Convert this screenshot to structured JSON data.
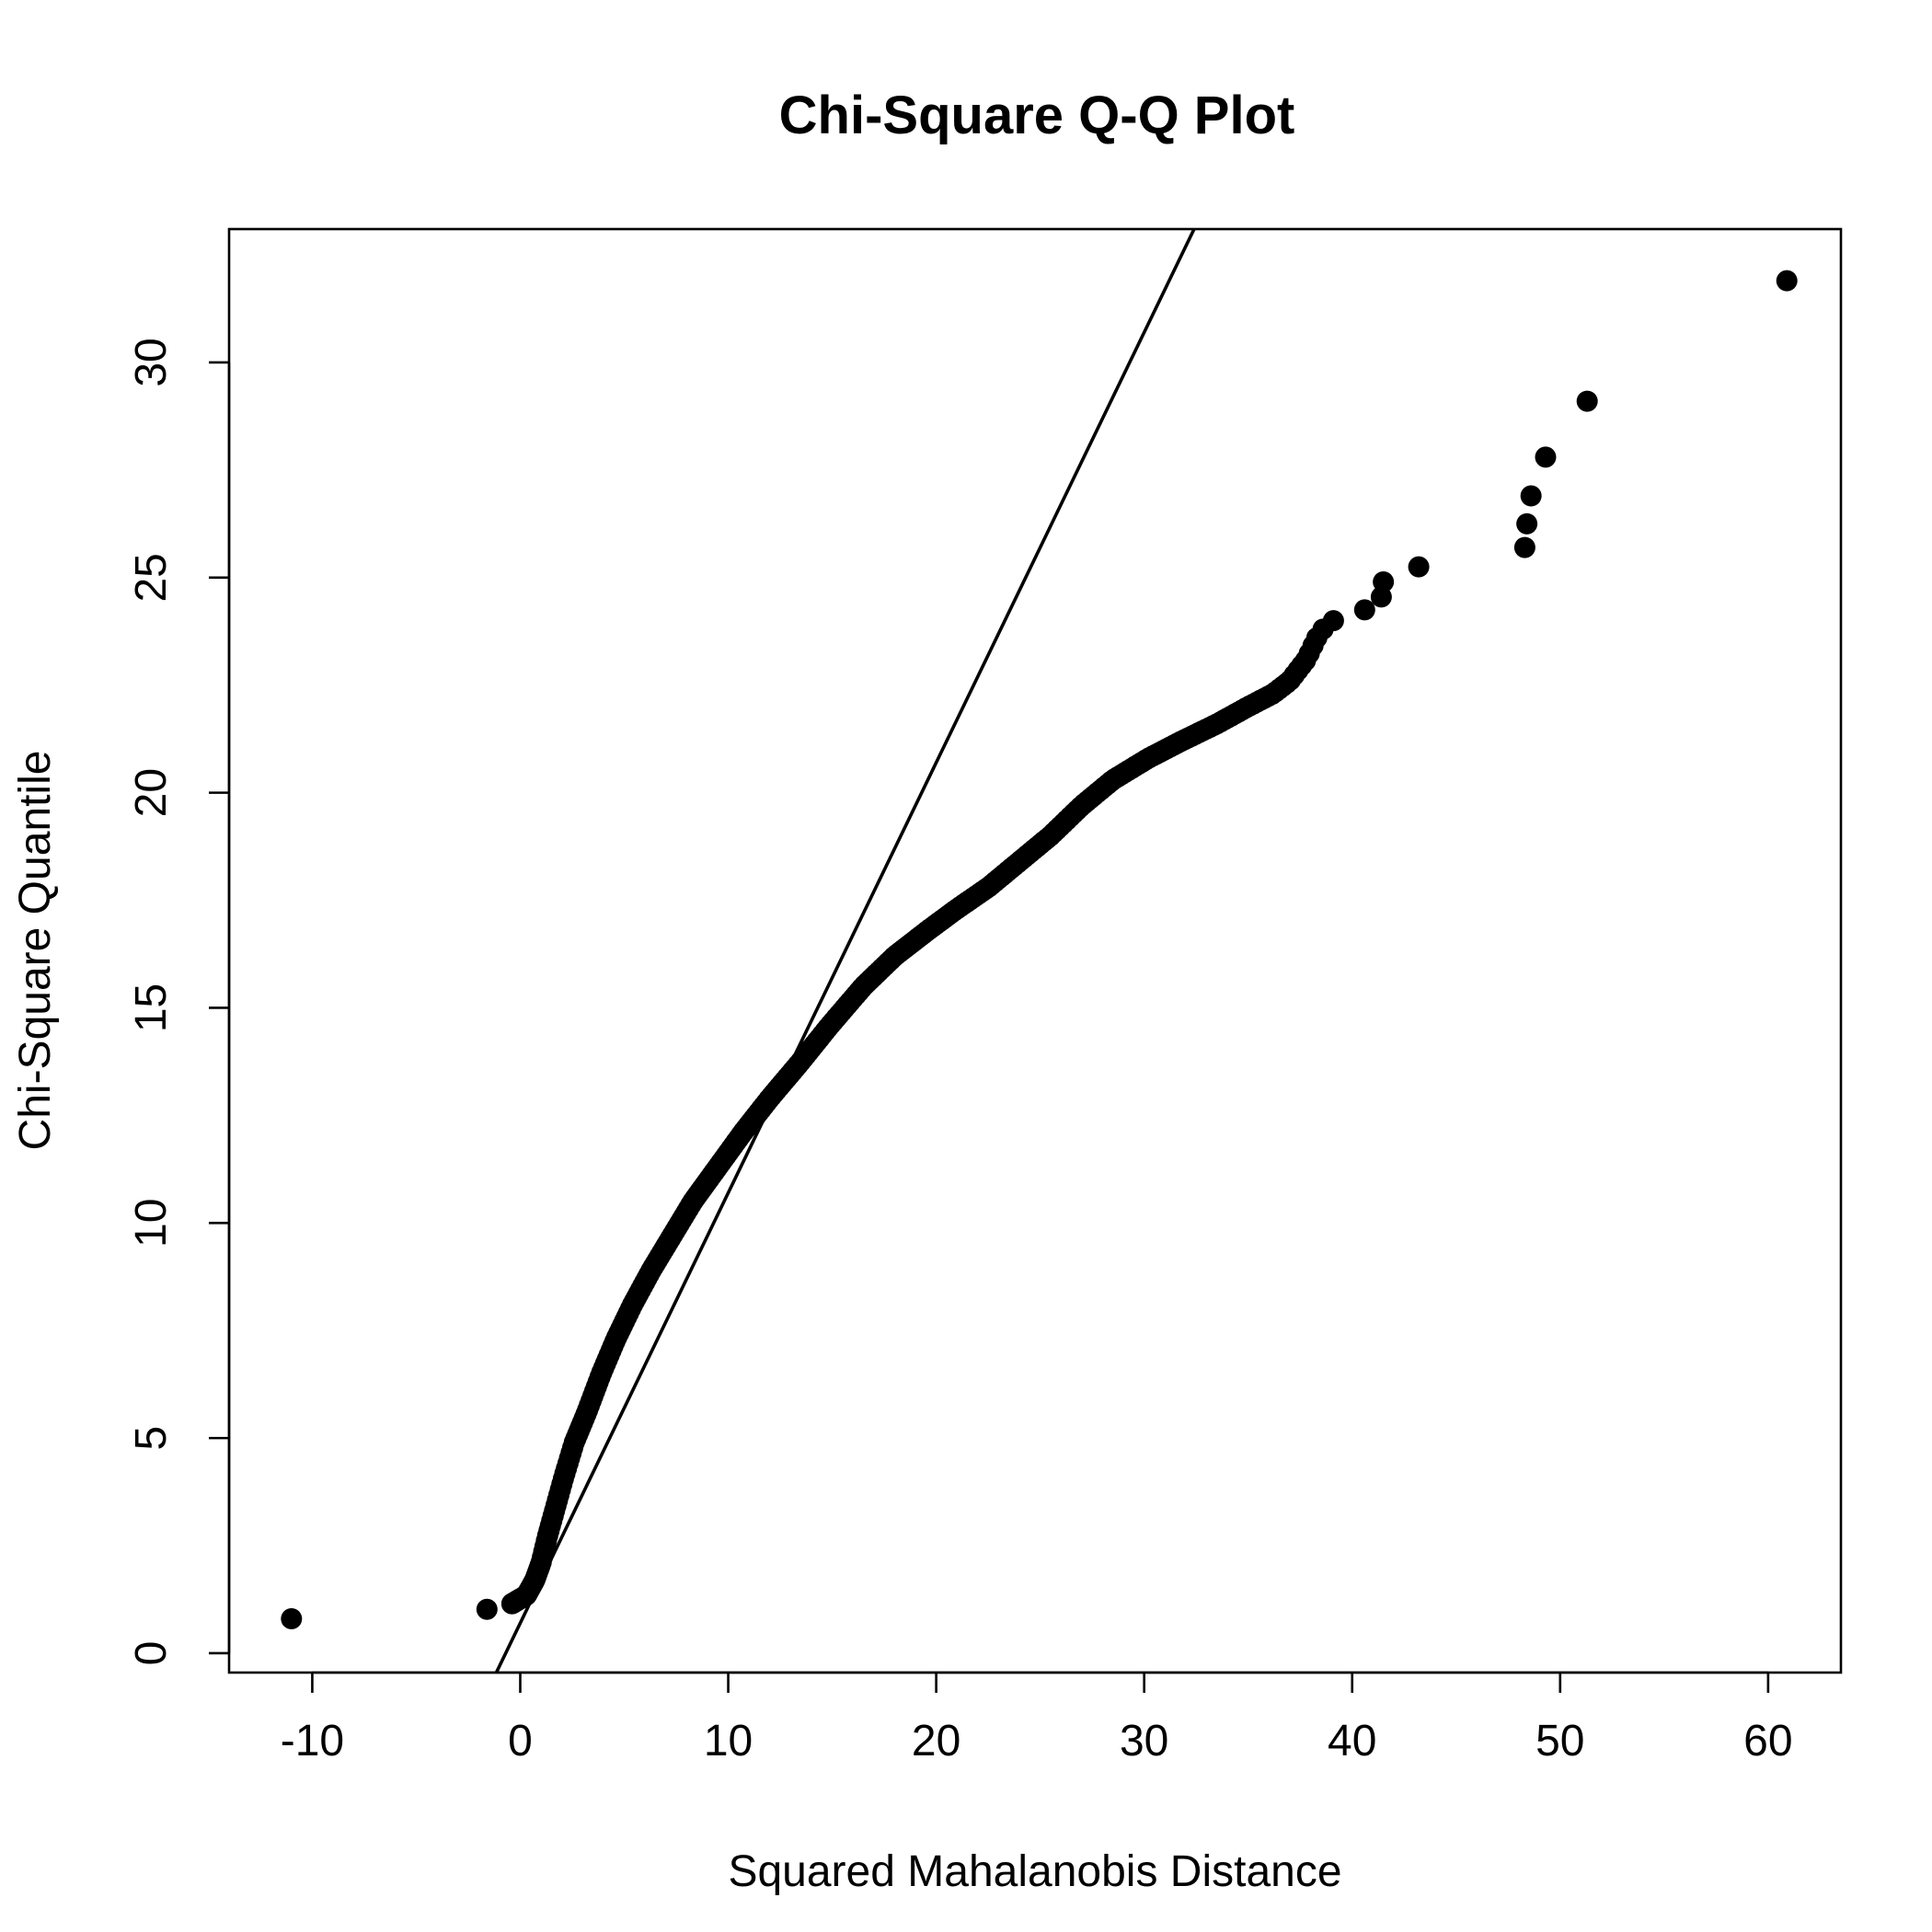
{
  "chart_data": {
    "type": "scatter",
    "title": "Chi-Square Q-Q Plot",
    "xlabel": "Squared Mahalanobis Distance",
    "ylabel": "Chi-Square Quantile",
    "xlim": [
      -14,
      63.5
    ],
    "ylim": [
      -0.45,
      33.1
    ],
    "x_ticks": [
      -10,
      0,
      10,
      20,
      30,
      40,
      50,
      60
    ],
    "y_ticks": [
      0,
      5,
      10,
      15,
      20,
      25,
      30
    ],
    "x_tick_labels": [
      "-10",
      "0",
      "10",
      "20",
      "30",
      "40",
      "50",
      "60"
    ],
    "y_tick_labels": [
      "0",
      "5",
      "10",
      "15",
      "20",
      "25",
      "30"
    ],
    "grid": false,
    "reference_line": {
      "intercept": 0.7,
      "slope": 1.0
    },
    "curve_anchors": [
      [
        -0.4,
        1.15
      ],
      [
        0.3,
        1.35
      ],
      [
        0.7,
        1.7
      ],
      [
        1.0,
        2.1
      ],
      [
        1.3,
        2.7
      ],
      [
        1.7,
        3.4
      ],
      [
        2.1,
        4.1
      ],
      [
        2.6,
        4.9
      ],
      [
        3.2,
        5.6
      ],
      [
        3.9,
        6.5
      ],
      [
        4.6,
        7.3
      ],
      [
        5.4,
        8.1
      ],
      [
        6.3,
        8.9
      ],
      [
        7.3,
        9.7
      ],
      [
        8.3,
        10.5
      ],
      [
        9.5,
        11.3
      ],
      [
        10.7,
        12.1
      ],
      [
        12.0,
        12.9
      ],
      [
        13.4,
        13.7
      ],
      [
        14.9,
        14.6
      ],
      [
        16.5,
        15.5
      ],
      [
        18.0,
        16.2
      ],
      [
        19.6,
        16.8
      ],
      [
        21.0,
        17.3
      ],
      [
        22.5,
        17.8
      ],
      [
        24.0,
        18.4
      ],
      [
        25.5,
        19.0
      ],
      [
        27.0,
        19.7
      ],
      [
        28.5,
        20.3
      ],
      [
        30.2,
        20.8
      ],
      [
        31.8,
        21.2
      ],
      [
        33.5,
        21.6
      ],
      [
        35.0,
        22.0
      ],
      [
        36.2,
        22.3
      ],
      [
        37.0,
        22.6
      ],
      [
        37.8,
        23.1
      ],
      [
        38.3,
        23.6
      ]
    ],
    "curve_point_count": 320,
    "points": [
      [
        -11.0,
        0.8
      ],
      [
        -1.6,
        1.02
      ],
      [
        -0.4,
        1.15
      ],
      [
        38.6,
        23.8
      ],
      [
        39.1,
        24.0
      ],
      [
        40.6,
        24.25
      ],
      [
        41.4,
        24.55
      ],
      [
        41.5,
        24.9
      ],
      [
        43.2,
        25.25
      ],
      [
        48.3,
        25.7
      ],
      [
        48.4,
        26.25
      ],
      [
        48.6,
        26.9
      ],
      [
        49.3,
        27.8
      ],
      [
        51.3,
        29.1
      ],
      [
        60.9,
        31.9
      ]
    ]
  }
}
